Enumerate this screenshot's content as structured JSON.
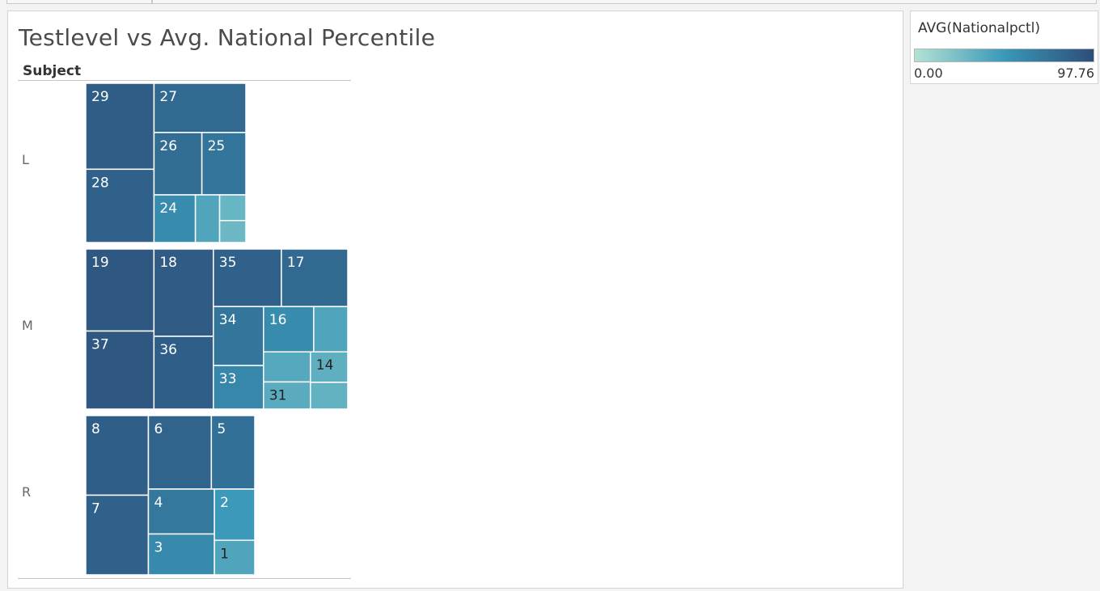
{
  "chart_data": {
    "type": "treemap",
    "title": "Testlevel vs Avg. National Percentile",
    "row_header": "Subject",
    "color_field": "AVG(Nationalpctl)",
    "color_range": [
      0,
      97.76
    ],
    "groups": [
      {
        "name": "L",
        "tiles": [
          {
            "label": "29",
            "value": 12.2,
            "color": 88
          },
          {
            "label": "28",
            "value": 10.4,
            "color": 85
          },
          {
            "label": "27",
            "value": 9.4,
            "color": 80
          },
          {
            "label": "26",
            "value": 6.2,
            "color": 77
          },
          {
            "label": "25",
            "value": 5.7,
            "color": 72
          },
          {
            "label": "24",
            "value": 4.1,
            "color": 57
          },
          {
            "label": "",
            "value": 2.4,
            "color": 40
          },
          {
            "label": "",
            "value": 1.4,
            "color": 30
          },
          {
            "label": "",
            "value": 1.2,
            "color": 28
          }
        ]
      },
      {
        "name": "M",
        "tiles": [
          {
            "label": "19",
            "value": 12.3,
            "color": 92
          },
          {
            "label": "37",
            "value": 11.7,
            "color": 92
          },
          {
            "label": "18",
            "value": 11.4,
            "color": 89
          },
          {
            "label": "36",
            "value": 9.5,
            "color": 87
          },
          {
            "label": "35",
            "value": 8.6,
            "color": 85
          },
          {
            "label": "17",
            "value": 8.4,
            "color": 80
          },
          {
            "label": "34",
            "value": 6.5,
            "color": 72
          },
          {
            "label": "33",
            "value": 4.8,
            "color": 60
          },
          {
            "label": "16",
            "value": 5.0,
            "color": 57
          },
          {
            "label": "",
            "value": 3.4,
            "color": 40
          },
          {
            "label": "",
            "value": 3.1,
            "color": 38
          },
          {
            "label": "31",
            "value": 2.8,
            "color": 36
          },
          {
            "label": "14",
            "value": 2.5,
            "color": 34
          },
          {
            "label": "",
            "value": 2.2,
            "color": 32
          }
        ]
      },
      {
        "name": "R",
        "tiles": [
          {
            "label": "8",
            "value": 11.1,
            "color": 87
          },
          {
            "label": "7",
            "value": 11.1,
            "color": 85
          },
          {
            "label": "6",
            "value": 10.3,
            "color": 83
          },
          {
            "label": "5",
            "value": 7.1,
            "color": 75
          },
          {
            "label": "4",
            "value": 6.6,
            "color": 70
          },
          {
            "label": "3",
            "value": 6.0,
            "color": 58
          },
          {
            "label": "2",
            "value": 4.6,
            "color": 48
          },
          {
            "label": "1",
            "value": 3.1,
            "color": 40
          }
        ]
      }
    ]
  }
}
